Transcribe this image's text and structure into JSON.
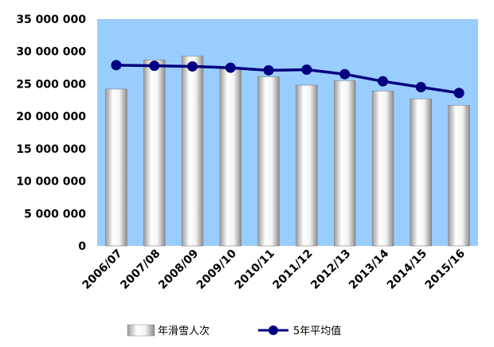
{
  "chart_data": {
    "type": "bar",
    "title": "",
    "xlabel": "",
    "ylabel": "",
    "categories": [
      "2006/07",
      "2007/08",
      "2008/09",
      "2009/10",
      "2010/11",
      "2011/12",
      "2012/13",
      "2013/14",
      "2014/15",
      "2015/16"
    ],
    "ylim": [
      0,
      35000000
    ],
    "yticks": [
      0,
      5000000,
      10000000,
      15000000,
      20000000,
      25000000,
      30000000,
      35000000
    ],
    "ytick_labels": [
      "0",
      "5 000 000",
      "10 000 000",
      "15 000 000",
      "20 000 000",
      "25 000 000",
      "30 000 000",
      "35 000 000"
    ],
    "grid": false,
    "legend_position": "bottom",
    "series": [
      {
        "name": "年滑雪人次",
        "type": "bar",
        "color": "#d9d9d9",
        "values": [
          24200000,
          28700000,
          29300000,
          27300000,
          26100000,
          24800000,
          25500000,
          23900000,
          22700000,
          21700000
        ]
      },
      {
        "name": "5年平均值",
        "type": "line",
        "color": "#000080",
        "values": [
          27900000,
          27800000,
          27700000,
          27500000,
          27100000,
          27200000,
          26500000,
          25400000,
          24500000,
          23600000
        ]
      }
    ],
    "plot_background": "#99ccff"
  }
}
